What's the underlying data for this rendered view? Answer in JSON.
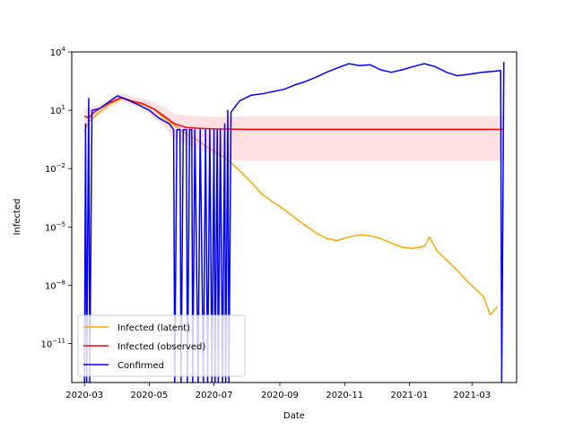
{
  "chart_data": {
    "type": "line",
    "title": "",
    "xlabel": "Date",
    "ylabel": "Infected",
    "xscale": "date",
    "yscale": "log",
    "xlim": [
      "2020-02-18",
      "2021-04-12"
    ],
    "ylim": [
      1e-13,
      10000
    ],
    "x_ticks": [
      "2020-03-01",
      "2020-05-01",
      "2020-07-01",
      "2020-09-01",
      "2020-11-01",
      "2021-01-01",
      "2021-03-01"
    ],
    "x_tick_labels": [
      "2020-03",
      "2020-05",
      "2020-07",
      "2020-09",
      "2020-11",
      "2021-01",
      "2021-03"
    ],
    "y_ticks": [
      1e-11,
      1e-08,
      1e-05,
      0.01,
      10,
      10000
    ],
    "y_tick_labels": [
      {
        "base": "10",
        "exp": "−11"
      },
      {
        "base": "10",
        "exp": "−8"
      },
      {
        "base": "10",
        "exp": "−5"
      },
      {
        "base": "10",
        "exp": "−2"
      },
      {
        "base": "10",
        "exp": "1"
      },
      {
        "base": "10",
        "exp": "4"
      }
    ],
    "grid": false,
    "legend_position": "lower-left",
    "series": [
      {
        "name": "Infected (latent)",
        "color": "#ffa500",
        "points": [
          [
            "2020-03-01",
            0.8
          ],
          [
            "2020-03-05",
            2.5
          ],
          [
            "2020-03-15",
            8
          ],
          [
            "2020-03-25",
            22
          ],
          [
            "2020-04-05",
            40
          ],
          [
            "2020-04-15",
            28
          ],
          [
            "2020-04-25",
            20
          ],
          [
            "2020-05-05",
            12
          ],
          [
            "2020-05-15",
            4
          ],
          [
            "2020-05-25",
            1.6
          ],
          [
            "2020-06-05",
            0.6
          ],
          [
            "2020-06-15",
            0.3
          ],
          [
            "2020-06-25",
            0.12
          ],
          [
            "2020-07-05",
            0.06
          ],
          [
            "2020-07-15",
            0.025
          ],
          [
            "2020-07-25",
            0.008
          ],
          [
            "2020-08-05",
            0.002
          ],
          [
            "2020-08-15",
            0.0005
          ],
          [
            "2020-08-25",
            0.0002
          ],
          [
            "2020-09-05",
            8e-05
          ],
          [
            "2020-09-15",
            3e-05
          ],
          [
            "2020-09-25",
            1.2e-05
          ],
          [
            "2020-10-05",
            5e-06
          ],
          [
            "2020-10-15",
            2.5e-06
          ],
          [
            "2020-10-25",
            2e-06
          ],
          [
            "2020-11-05",
            3e-06
          ],
          [
            "2020-11-15",
            4e-06
          ],
          [
            "2020-11-25",
            3.5e-06
          ],
          [
            "2020-12-05",
            2.5e-06
          ],
          [
            "2020-12-15",
            1.5e-06
          ],
          [
            "2020-12-25",
            9e-07
          ],
          [
            "2021-01-05",
            8e-07
          ],
          [
            "2021-01-15",
            1e-06
          ],
          [
            "2021-01-20",
            3e-06
          ],
          [
            "2021-01-27",
            6e-07
          ],
          [
            "2021-02-05",
            2e-07
          ],
          [
            "2021-02-15",
            6e-08
          ],
          [
            "2021-02-25",
            1.5e-08
          ],
          [
            "2021-03-05",
            6e-09
          ],
          [
            "2021-03-12",
            2.5e-09
          ],
          [
            "2021-03-18",
            3e-10
          ],
          [
            "2021-03-25",
            8e-10
          ]
        ]
      },
      {
        "name": "Infected (observed)",
        "color": "#ff0000",
        "points": [
          [
            "2020-03-01",
            5
          ],
          [
            "2020-03-05",
            4
          ],
          [
            "2020-03-10",
            8
          ],
          [
            "2020-03-15",
            12
          ],
          [
            "2020-03-25",
            25
          ],
          [
            "2020-04-05",
            45
          ],
          [
            "2020-04-15",
            30
          ],
          [
            "2020-04-25",
            22
          ],
          [
            "2020-05-05",
            12
          ],
          [
            "2020-05-15",
            5
          ],
          [
            "2020-05-25",
            2
          ],
          [
            "2020-06-05",
            1.3
          ],
          [
            "2020-06-15",
            1.2
          ],
          [
            "2020-07-01",
            1.1
          ],
          [
            "2020-08-01",
            1.05
          ],
          [
            "2020-10-01",
            1.05
          ],
          [
            "2020-12-01",
            1.05
          ],
          [
            "2021-02-01",
            1.05
          ],
          [
            "2021-03-31",
            1.05
          ]
        ]
      },
      {
        "name": "Confirmed",
        "color": "#0000ff",
        "points": [
          [
            "2020-03-01",
            1e-13
          ],
          [
            "2020-03-02",
            2
          ],
          [
            "2020-03-03",
            1e-13
          ],
          [
            "2020-03-05",
            40
          ],
          [
            "2020-03-06",
            1e-13
          ],
          [
            "2020-03-08",
            10
          ],
          [
            "2020-03-15",
            12
          ],
          [
            "2020-03-25",
            30
          ],
          [
            "2020-04-01",
            55
          ],
          [
            "2020-04-10",
            35
          ],
          [
            "2020-04-20",
            20
          ],
          [
            "2020-05-01",
            10
          ],
          [
            "2020-05-10",
            4
          ],
          [
            "2020-05-20",
            2
          ],
          [
            "2020-05-24",
            1
          ],
          [
            "2020-05-25",
            1e-13
          ],
          [
            "2020-05-27",
            1
          ],
          [
            "2020-05-30",
            1
          ],
          [
            "2020-05-31",
            1e-13
          ],
          [
            "2020-06-02",
            1
          ],
          [
            "2020-06-05",
            1
          ],
          [
            "2020-06-06",
            1e-13
          ],
          [
            "2020-06-08",
            1
          ],
          [
            "2020-06-10",
            1
          ],
          [
            "2020-06-11",
            1e-13
          ],
          [
            "2020-06-13",
            1
          ],
          [
            "2020-06-16",
            1e-13
          ],
          [
            "2020-06-18",
            1
          ],
          [
            "2020-06-21",
            1e-13
          ],
          [
            "2020-06-23",
            1
          ],
          [
            "2020-06-25",
            1e-13
          ],
          [
            "2020-06-27",
            1
          ],
          [
            "2020-06-29",
            1e-13
          ],
          [
            "2020-07-01",
            1
          ],
          [
            "2020-07-02",
            1e-13
          ],
          [
            "2020-07-04",
            1
          ],
          [
            "2020-07-05",
            1e-13
          ],
          [
            "2020-07-07",
            1
          ],
          [
            "2020-07-09",
            1e-13
          ],
          [
            "2020-07-11",
            2
          ],
          [
            "2020-07-12",
            1e-13
          ],
          [
            "2020-07-14",
            10
          ],
          [
            "2020-07-15",
            1e-13
          ],
          [
            "2020-07-17",
            8
          ],
          [
            "2020-07-25",
            30
          ],
          [
            "2020-08-05",
            60
          ],
          [
            "2020-08-15",
            70
          ],
          [
            "2020-08-25",
            90
          ],
          [
            "2020-09-05",
            120
          ],
          [
            "2020-09-15",
            200
          ],
          [
            "2020-09-25",
            300
          ],
          [
            "2020-10-05",
            500
          ],
          [
            "2020-10-15",
            900
          ],
          [
            "2020-10-25",
            1500
          ],
          [
            "2020-11-05",
            2500
          ],
          [
            "2020-11-15",
            2000
          ],
          [
            "2020-11-25",
            2200
          ],
          [
            "2020-12-05",
            1200
          ],
          [
            "2020-12-15",
            900
          ],
          [
            "2020-12-25",
            1200
          ],
          [
            "2021-01-05",
            1800
          ],
          [
            "2021-01-15",
            2500
          ],
          [
            "2021-01-25",
            1800
          ],
          [
            "2021-02-05",
            900
          ],
          [
            "2021-02-15",
            600
          ],
          [
            "2021-02-25",
            700
          ],
          [
            "2021-03-10",
            900
          ],
          [
            "2021-03-20",
            1000
          ],
          [
            "2021-03-28",
            1100
          ],
          [
            "2021-03-29",
            1e-13
          ],
          [
            "2021-03-31",
            3000
          ]
        ]
      }
    ],
    "band": {
      "color": "#ff0000",
      "alpha": 0.12,
      "lower": [
        [
          "2020-03-01",
          1.5
        ],
        [
          "2020-03-15",
          6
        ],
        [
          "2020-04-05",
          30
        ],
        [
          "2020-04-25",
          12
        ],
        [
          "2020-05-15",
          1.5
        ],
        [
          "2020-05-25",
          0.3
        ],
        [
          "2020-06-15",
          0.1
        ],
        [
          "2020-07-01",
          0.05
        ],
        [
          "2020-07-15",
          0.03
        ],
        [
          "2020-08-01",
          0.025
        ],
        [
          "2021-03-31",
          0.025
        ]
      ],
      "upper": [
        [
          "2020-03-01",
          12
        ],
        [
          "2020-03-15",
          20
        ],
        [
          "2020-04-05",
          70
        ],
        [
          "2020-04-25",
          40
        ],
        [
          "2020-05-15",
          15
        ],
        [
          "2020-05-25",
          6
        ],
        [
          "2020-06-15",
          5
        ],
        [
          "2020-07-01",
          4.5
        ],
        [
          "2020-08-01",
          5
        ],
        [
          "2021-03-31",
          5
        ]
      ]
    }
  }
}
